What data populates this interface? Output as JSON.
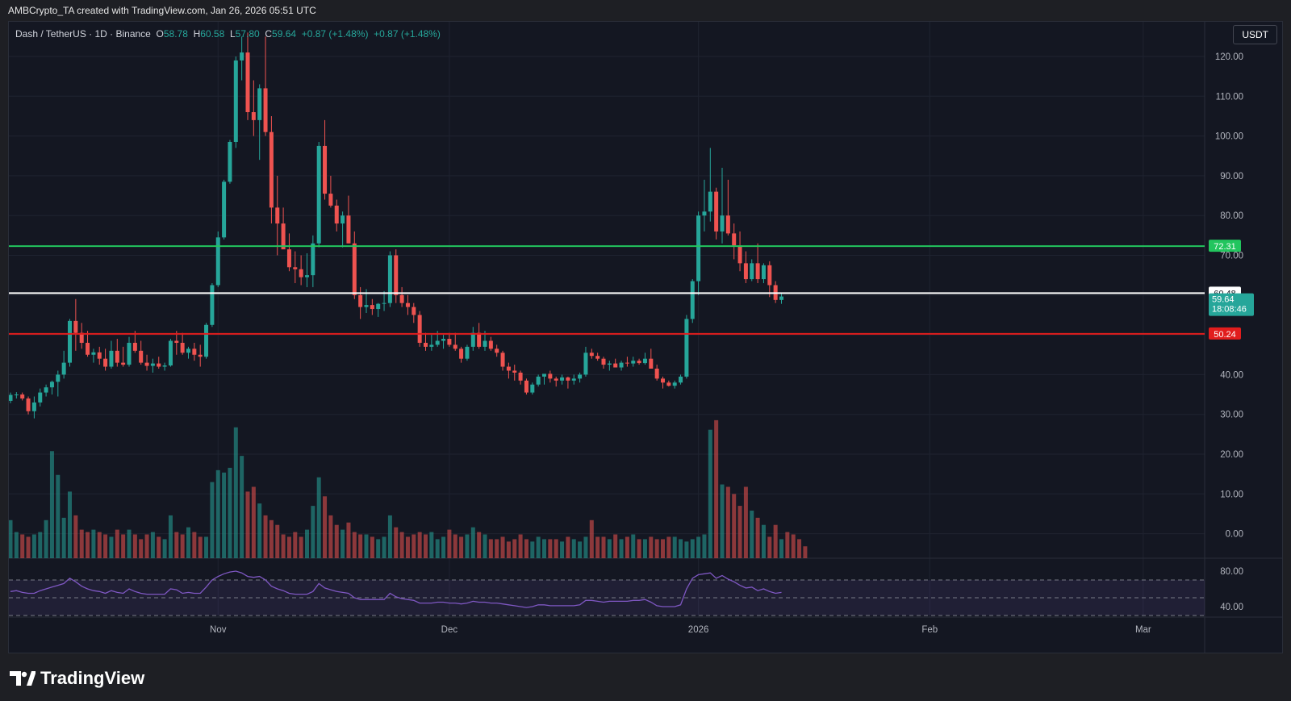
{
  "header": {
    "attribution": "AMBCrypto_TA created with TradingView.com, Jan 26, 2026 05:51 UTC"
  },
  "legend": {
    "symbol": "Dash / TetherUS · 1D · Binance",
    "o_label": "O",
    "o_value": "58.78",
    "h_label": "H",
    "h_value": "60.58",
    "l_label": "L",
    "l_value": "57.80",
    "c_label": "C",
    "c_value": "59.64",
    "change1": "+0.87 (+1.48%)",
    "change2": "+0.87 (+1.48%)"
  },
  "currency_button": "USDT",
  "brand": {
    "name": "TradingView"
  },
  "colors": {
    "up": "#26a69a",
    "down": "#ef5350",
    "support_line": "#e11d1d",
    "resistance_line": "#22c55e",
    "mid_line": "#ffffff",
    "rsi": "#7e57c2"
  },
  "chart_data": {
    "type": "candlestick",
    "title": "",
    "price_axis": {
      "ticks": [
        120,
        110,
        100,
        90,
        80,
        70,
        60,
        50,
        40,
        30,
        20,
        10,
        0
      ],
      "tick_labels": [
        "120.00",
        "110.00",
        "100.00",
        "90.00",
        "80.00",
        "70.00",
        "",
        "",
        "40.00",
        "30.00",
        "20.00",
        "10.00",
        "0.00"
      ],
      "range": [
        -6,
        125
      ]
    },
    "time_axis": {
      "labels": [
        "Nov",
        "Dec",
        "2026",
        "Feb",
        "Mar"
      ],
      "label_bars": [
        35,
        74,
        116,
        155,
        191
      ]
    },
    "horizontal_levels": [
      {
        "value": 72.31,
        "label": "72.31",
        "color": "#22c55e"
      },
      {
        "value": 60.48,
        "label": "60.48",
        "color": "#ffffff"
      },
      {
        "value": 50.24,
        "label": "50.24",
        "color": "#e11d1d"
      }
    ],
    "last_price": {
      "value": 59.64,
      "label": "59.64",
      "countdown": "18:08:46"
    },
    "candles_ohlc": [
      [
        33.4,
        35.5,
        32.8,
        34.9
      ],
      [
        34.9,
        35.6,
        34.0,
        35.0
      ],
      [
        35.0,
        35.5,
        33.5,
        34.0
      ],
      [
        34.0,
        34.5,
        30.0,
        30.8
      ],
      [
        30.8,
        34.5,
        29.0,
        33.0
      ],
      [
        33.0,
        36.5,
        32.0,
        35.5
      ],
      [
        35.5,
        37.5,
        34.5,
        36.8
      ],
      [
        36.8,
        38.5,
        35.0,
        38.2
      ],
      [
        38.2,
        41.0,
        34.5,
        40.0
      ],
      [
        40.0,
        46.0,
        39.0,
        43.0
      ],
      [
        43.0,
        54.0,
        42.0,
        53.5
      ],
      [
        53.5,
        59.0,
        46.0,
        50.5
      ],
      [
        50.5,
        53.0,
        46.5,
        48.0
      ],
      [
        48.0,
        51.0,
        44.5,
        45.0
      ],
      [
        45.0,
        46.5,
        43.0,
        45.6
      ],
      [
        45.6,
        47.0,
        42.5,
        44.0
      ],
      [
        44.0,
        46.5,
        41.0,
        42.0
      ],
      [
        42.0,
        48.5,
        41.5,
        46.0
      ],
      [
        46.0,
        49.0,
        42.0,
        43.0
      ],
      [
        43.0,
        47.0,
        42.0,
        42.5
      ],
      [
        42.5,
        49.5,
        42.0,
        48.0
      ],
      [
        48.0,
        51.0,
        45.5,
        46.0
      ],
      [
        46.0,
        48.5,
        42.5,
        43.0
      ],
      [
        43.0,
        45.0,
        41.0,
        42.2
      ],
      [
        42.2,
        44.0,
        40.5,
        42.8
      ],
      [
        42.8,
        44.5,
        41.5,
        42.0
      ],
      [
        42.0,
        43.0,
        41.0,
        42.3
      ],
      [
        42.3,
        49.0,
        42.0,
        48.5
      ],
      [
        48.5,
        51.0,
        45.0,
        48.0
      ],
      [
        48.0,
        50.5,
        45.0,
        45.5
      ],
      [
        45.5,
        47.0,
        44.0,
        46.5
      ],
      [
        46.5,
        48.0,
        43.5,
        45.0
      ],
      [
        45.0,
        47.5,
        42.0,
        44.5
      ],
      [
        44.5,
        53.0,
        44.0,
        52.5
      ],
      [
        52.5,
        63.0,
        52.0,
        62.5
      ],
      [
        62.5,
        76.0,
        62.0,
        74.5
      ],
      [
        74.5,
        89.0,
        74.0,
        88.5
      ],
      [
        88.5,
        99.0,
        88.0,
        98.5
      ],
      [
        98.5,
        120.0,
        97.0,
        119.0
      ],
      [
        119.0,
        125.0,
        114.0,
        121.0
      ],
      [
        121.0,
        126.0,
        104.0,
        106.0
      ],
      [
        106.0,
        114.0,
        100.0,
        104.0
      ],
      [
        104.0,
        113.0,
        94.0,
        112.0
      ],
      [
        112.0,
        125.0,
        100.0,
        101.0
      ],
      [
        101.0,
        105.0,
        78.0,
        82.0
      ],
      [
        82.0,
        90.0,
        70.0,
        78.0
      ],
      [
        78.0,
        82.0,
        72.0,
        71.5
      ],
      [
        71.5,
        75.5,
        66.0,
        67.0
      ],
      [
        67.0,
        71.0,
        63.0,
        66.5
      ],
      [
        66.5,
        70.0,
        62.5,
        64.5
      ],
      [
        64.5,
        70.5,
        62.0,
        65.0
      ],
      [
        65.0,
        75.0,
        62.0,
        73.0
      ],
      [
        73.0,
        98.5,
        72.0,
        97.5
      ],
      [
        97.5,
        104.0,
        84.0,
        85.5
      ],
      [
        85.5,
        90.0,
        82.0,
        82.5
      ],
      [
        82.5,
        84.0,
        76.0,
        78.0
      ],
      [
        78.0,
        81.0,
        72.0,
        80.0
      ],
      [
        80.0,
        85.0,
        73.0,
        73.0
      ],
      [
        73.0,
        76.0,
        59.0,
        60.0
      ],
      [
        60.0,
        62.0,
        54.0,
        57.0
      ],
      [
        57.0,
        61.5,
        55.5,
        57.5
      ],
      [
        57.5,
        59.0,
        55.0,
        56.5
      ],
      [
        56.5,
        58.0,
        54.5,
        57.8
      ],
      [
        57.8,
        61.0,
        56.0,
        58.0
      ],
      [
        58.0,
        71.0,
        57.0,
        70.0
      ],
      [
        70.0,
        71.5,
        58.0,
        60.0
      ],
      [
        60.0,
        62.0,
        57.0,
        58.0
      ],
      [
        58.0,
        60.0,
        55.0,
        57.0
      ],
      [
        57.0,
        58.0,
        53.0,
        55.0
      ],
      [
        55.0,
        56.0,
        47.0,
        48.0
      ],
      [
        48.0,
        50.5,
        46.0,
        47.0
      ],
      [
        47.0,
        50.0,
        46.0,
        47.5
      ],
      [
        47.5,
        51.0,
        47.0,
        48.5
      ],
      [
        48.5,
        50.0,
        46.5,
        49.0
      ],
      [
        49.0,
        50.5,
        47.0,
        47.5
      ],
      [
        47.5,
        50.5,
        46.0,
        46.5
      ],
      [
        46.5,
        47.0,
        43.0,
        44.0
      ],
      [
        44.0,
        47.5,
        43.5,
        47.0
      ],
      [
        47.0,
        52.0,
        46.0,
        50.5
      ],
      [
        50.5,
        53.0,
        46.5,
        47.0
      ],
      [
        47.0,
        51.0,
        46.0,
        48.5
      ],
      [
        48.5,
        49.5,
        46.0,
        46.5
      ],
      [
        46.5,
        47.5,
        44.5,
        45.5
      ],
      [
        45.5,
        46.0,
        41.0,
        42.0
      ],
      [
        42.0,
        43.0,
        39.0,
        41.0
      ],
      [
        41.0,
        42.5,
        38.5,
        40.5
      ],
      [
        40.5,
        41.0,
        37.5,
        38.5
      ],
      [
        38.5,
        39.0,
        35.0,
        35.5
      ],
      [
        35.5,
        38.0,
        35.0,
        37.5
      ],
      [
        37.5,
        40.0,
        37.0,
        39.5
      ],
      [
        39.5,
        40.0,
        37.5,
        40.2
      ],
      [
        40.2,
        41.0,
        38.0,
        39.0
      ],
      [
        39.0,
        39.5,
        37.0,
        38.5
      ],
      [
        38.5,
        40.0,
        37.5,
        39.3
      ],
      [
        39.3,
        39.5,
        36.5,
        38.5
      ],
      [
        38.5,
        40.0,
        37.5,
        39.0
      ],
      [
        39.0,
        40.5,
        38.0,
        40.0
      ],
      [
        40.0,
        47.0,
        39.5,
        45.5
      ],
      [
        45.5,
        46.5,
        44.0,
        44.7
      ],
      [
        44.7,
        45.5,
        43.5,
        44.0
      ],
      [
        44.0,
        44.5,
        41.5,
        42.5
      ],
      [
        42.5,
        43.5,
        41.0,
        42.8
      ],
      [
        42.8,
        44.0,
        42.0,
        41.8
      ],
      [
        41.8,
        43.5,
        41.0,
        43.0
      ],
      [
        43.0,
        44.5,
        42.0,
        42.8
      ],
      [
        42.8,
        44.5,
        42.0,
        43.5
      ],
      [
        43.5,
        44.0,
        42.5,
        42.9
      ],
      [
        42.9,
        45.5,
        42.5,
        44.0
      ],
      [
        44.0,
        46.5,
        42.5,
        41.5
      ],
      [
        41.5,
        42.5,
        38.5,
        39.0
      ],
      [
        39.0,
        39.5,
        36.5,
        38.0
      ],
      [
        38.0,
        38.5,
        37.0,
        37.2
      ],
      [
        37.2,
        38.5,
        36.5,
        38.0
      ],
      [
        38.0,
        40.0,
        37.5,
        39.5
      ],
      [
        39.5,
        55.0,
        39.0,
        54.0
      ],
      [
        54.0,
        64.0,
        53.0,
        63.5
      ],
      [
        63.5,
        81.0,
        60.0,
        80.0
      ],
      [
        80.0,
        89.0,
        76.0,
        81.0
      ],
      [
        81.0,
        97.0,
        78.5,
        86.0
      ],
      [
        86.0,
        87.0,
        74.0,
        76.0
      ],
      [
        76.0,
        92.0,
        73.0,
        80.0
      ],
      [
        80.0,
        89.0,
        75.0,
        75.5
      ],
      [
        75.5,
        78.0,
        69.0,
        72.5
      ],
      [
        72.5,
        76.0,
        66.0,
        68.0
      ],
      [
        68.0,
        71.0,
        63.0,
        64.0
      ],
      [
        64.0,
        69.0,
        63.5,
        68.0
      ],
      [
        68.0,
        73.0,
        63.0,
        64.0
      ],
      [
        64.0,
        68.0,
        63.0,
        67.5
      ],
      [
        67.5,
        68.5,
        59.5,
        62.5
      ],
      [
        62.5,
        63.5,
        58.0,
        58.78
      ],
      [
        58.78,
        60.58,
        57.8,
        59.64
      ]
    ],
    "volume_series": [
      16,
      11,
      10,
      9,
      10,
      11,
      16,
      45,
      35,
      17,
      28,
      18,
      12,
      11,
      12,
      11,
      10,
      9,
      12,
      10,
      12,
      10,
      8,
      10,
      11,
      9,
      8,
      18,
      11,
      10,
      13,
      11,
      9,
      9,
      32,
      37,
      36,
      38,
      55,
      43,
      28,
      30,
      23,
      18,
      16,
      14,
      10,
      9,
      11,
      9,
      12,
      22,
      34,
      26,
      18,
      14,
      12,
      15,
      11,
      10,
      10,
      9,
      8,
      9,
      18,
      13,
      11,
      9,
      10,
      11,
      10,
      11,
      8,
      9,
      12,
      10,
      9,
      10,
      13,
      11,
      10,
      8,
      8,
      9,
      7,
      8,
      10,
      8,
      7,
      9,
      8,
      8,
      8,
      7,
      9,
      8,
      7,
      9,
      16,
      9,
      9,
      8,
      10,
      8,
      9,
      10,
      8,
      8,
      9,
      8,
      8,
      9,
      9,
      8,
      7,
      8,
      9,
      10,
      54,
      58,
      31,
      30,
      27,
      22,
      30,
      20,
      17,
      14,
      9,
      14,
      8,
      11,
      10,
      8,
      5
    ],
    "volume_colors": [
      "u",
      "u",
      "d",
      "d",
      "u",
      "u",
      "u",
      "u",
      "u",
      "u",
      "u",
      "d",
      "d",
      "d",
      "u",
      "d",
      "d",
      "u",
      "d",
      "d",
      "u",
      "d",
      "d",
      "d",
      "u",
      "d",
      "u",
      "u",
      "d",
      "d",
      "u",
      "d",
      "d",
      "u",
      "u",
      "u",
      "u",
      "u",
      "u",
      "u",
      "d",
      "d",
      "u",
      "d",
      "d",
      "d",
      "d",
      "d",
      "d",
      "d",
      "u",
      "u",
      "u",
      "d",
      "d",
      "d",
      "u",
      "d",
      "d",
      "d",
      "u",
      "d",
      "u",
      "u",
      "u",
      "d",
      "d",
      "d",
      "d",
      "d",
      "d",
      "u",
      "u",
      "u",
      "d",
      "d",
      "d",
      "u",
      "u",
      "d",
      "u",
      "d",
      "d",
      "d",
      "d",
      "d",
      "d",
      "d",
      "u",
      "u",
      "u",
      "d",
      "d",
      "u",
      "d",
      "u",
      "u",
      "u",
      "d",
      "d",
      "d",
      "u",
      "d",
      "u",
      "d",
      "u",
      "d",
      "u",
      "d",
      "d",
      "d",
      "d",
      "u",
      "u",
      "u",
      "u",
      "u",
      "u",
      "u",
      "d",
      "u",
      "d",
      "d",
      "d",
      "d",
      "u",
      "d",
      "u",
      "d",
      "d",
      "u"
    ],
    "rsi": {
      "axis_ticks": [
        80,
        40
      ],
      "axis_labels": [
        "80.00",
        "40.00"
      ],
      "overbought": 70,
      "oversold": 30,
      "mid": 50,
      "values": [
        57,
        58,
        56,
        55,
        55,
        58,
        60,
        62,
        64,
        66,
        72,
        68,
        63,
        60,
        58,
        57,
        55,
        58,
        56,
        55,
        60,
        57,
        55,
        54,
        54,
        54,
        54,
        60,
        59,
        55,
        56,
        55,
        55,
        62,
        70,
        74,
        77,
        79,
        80,
        78,
        74,
        73,
        74,
        70,
        63,
        60,
        58,
        55,
        54,
        54,
        54,
        57,
        66,
        61,
        59,
        57,
        56,
        55,
        50,
        48,
        48,
        48,
        48,
        48,
        55,
        51,
        49,
        48,
        47,
        44,
        44,
        44,
        45,
        45,
        44,
        44,
        43,
        44,
        46,
        45,
        45,
        44,
        44,
        43,
        42,
        41,
        40,
        39,
        40,
        42,
        42,
        41,
        41,
        41,
        41,
        41,
        42,
        47,
        47,
        46,
        45,
        46,
        46,
        46,
        46,
        47,
        47,
        48,
        45,
        41,
        40,
        40,
        40,
        42,
        60,
        72,
        76,
        77,
        78,
        72,
        75,
        71,
        68,
        64,
        61,
        62,
        58,
        60,
        57,
        55,
        56
      ]
    }
  }
}
